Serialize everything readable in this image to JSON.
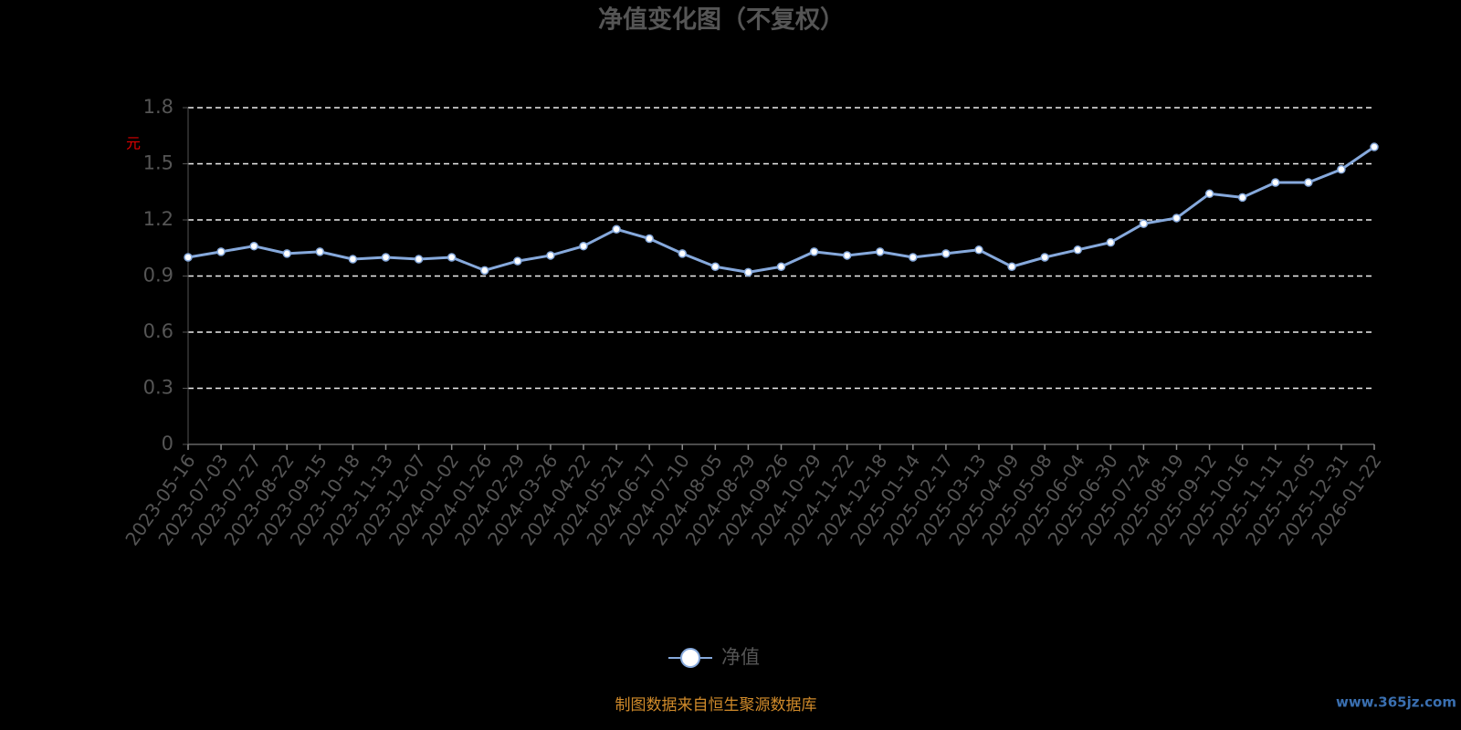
{
  "chart_data": {
    "type": "line",
    "title": "净值变化图（不复权）",
    "y_label": "元",
    "categories": [
      "2023-05-16",
      "2023-07-03",
      "2023-07-27",
      "2023-08-22",
      "2023-09-15",
      "2023-10-18",
      "2023-11-13",
      "2023-12-07",
      "2024-01-02",
      "2024-01-26",
      "2024-02-29",
      "2024-03-26",
      "2024-04-22",
      "2024-05-21",
      "2024-06-17",
      "2024-07-10",
      "2024-08-05",
      "2024-08-29",
      "2024-09-26",
      "2024-10-29",
      "2024-11-22",
      "2024-12-18",
      "2025-01-14",
      "2025-02-17",
      "2025-03-13",
      "2025-04-09",
      "2025-05-08",
      "2025-06-04",
      "2025-06-30",
      "2025-07-24",
      "2025-08-19",
      "2025-09-12",
      "2025-10-16",
      "2025-11-11",
      "2025-12-05",
      "2025-12-31",
      "2026-01-22"
    ],
    "series": [
      {
        "name": "净值",
        "color": "#86a9dc",
        "values": [
          1.0,
          1.03,
          1.06,
          1.02,
          1.03,
          0.99,
          1.0,
          0.99,
          1.0,
          0.93,
          0.98,
          1.01,
          1.06,
          1.15,
          1.1,
          1.02,
          0.95,
          0.92,
          0.95,
          1.03,
          1.01,
          1.03,
          1.0,
          1.02,
          1.04,
          0.95,
          1.0,
          1.04,
          1.08,
          1.18,
          1.21,
          1.34,
          1.32,
          1.4,
          1.4,
          1.47,
          1.59
        ]
      }
    ],
    "ylim": [
      0,
      1.8
    ],
    "yticks": [
      0,
      0.3,
      0.6,
      0.9,
      1.2,
      1.5,
      1.8
    ],
    "grid": true,
    "legend": "bottom",
    "footer": "制图数据来自恒生聚源数据库",
    "watermark": "www.365jz.com"
  }
}
